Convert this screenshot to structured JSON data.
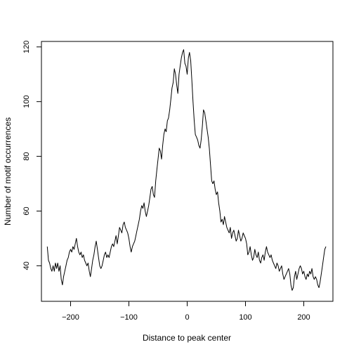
{
  "chart_data": {
    "type": "line",
    "title": "",
    "xlabel": "Distance to peak center",
    "ylabel": "Number of motif occurrences",
    "xlim": [
      -250,
      250
    ],
    "ylim": [
      27,
      122
    ],
    "xticks": [
      -200,
      -100,
      0,
      100,
      200
    ],
    "yticks": [
      40,
      60,
      80,
      100,
      120
    ],
    "grid": false,
    "line_color": "#000000",
    "series": [
      {
        "points": [
          [
            -240,
            47
          ],
          [
            -238,
            42
          ],
          [
            -236,
            41
          ],
          [
            -234,
            39
          ],
          [
            -232,
            38
          ],
          [
            -230,
            40
          ],
          [
            -228,
            38
          ],
          [
            -226,
            41
          ],
          [
            -224,
            39
          ],
          [
            -222,
            41
          ],
          [
            -220,
            38
          ],
          [
            -218,
            40
          ],
          [
            -216,
            35
          ],
          [
            -214,
            33
          ],
          [
            -212,
            36
          ],
          [
            -210,
            38
          ],
          [
            -208,
            40
          ],
          [
            -206,
            42
          ],
          [
            -204,
            43
          ],
          [
            -202,
            45
          ],
          [
            -200,
            46
          ],
          [
            -198,
            45
          ],
          [
            -196,
            47
          ],
          [
            -194,
            46
          ],
          [
            -192,
            48
          ],
          [
            -190,
            50
          ],
          [
            -188,
            47
          ],
          [
            -186,
            45
          ],
          [
            -184,
            44
          ],
          [
            -182,
            45
          ],
          [
            -180,
            43
          ],
          [
            -178,
            44
          ],
          [
            -176,
            42
          ],
          [
            -174,
            41
          ],
          [
            -172,
            40
          ],
          [
            -170,
            41
          ],
          [
            -168,
            38
          ],
          [
            -166,
            36
          ],
          [
            -164,
            39
          ],
          [
            -162,
            42
          ],
          [
            -160,
            44
          ],
          [
            -158,
            47
          ],
          [
            -156,
            49
          ],
          [
            -154,
            46
          ],
          [
            -152,
            43
          ],
          [
            -150,
            40
          ],
          [
            -148,
            39
          ],
          [
            -146,
            40
          ],
          [
            -144,
            42
          ],
          [
            -142,
            44
          ],
          [
            -140,
            45
          ],
          [
            -138,
            43
          ],
          [
            -136,
            44
          ],
          [
            -134,
            43
          ],
          [
            -132,
            45
          ],
          [
            -130,
            47
          ],
          [
            -128,
            48
          ],
          [
            -126,
            47
          ],
          [
            -124,
            49
          ],
          [
            -122,
            51
          ],
          [
            -120,
            48
          ],
          [
            -118,
            51
          ],
          [
            -116,
            54
          ],
          [
            -114,
            53
          ],
          [
            -112,
            52
          ],
          [
            -110,
            55
          ],
          [
            -108,
            56
          ],
          [
            -106,
            54
          ],
          [
            -104,
            53
          ],
          [
            -102,
            52
          ],
          [
            -100,
            50
          ],
          [
            -98,
            47
          ],
          [
            -96,
            45
          ],
          [
            -94,
            47
          ],
          [
            -92,
            48
          ],
          [
            -90,
            49
          ],
          [
            -88,
            51
          ],
          [
            -86,
            53
          ],
          [
            -84,
            55
          ],
          [
            -82,
            57
          ],
          [
            -80,
            60
          ],
          [
            -78,
            62
          ],
          [
            -76,
            61
          ],
          [
            -74,
            63
          ],
          [
            -72,
            60
          ],
          [
            -70,
            58
          ],
          [
            -68,
            60
          ],
          [
            -66,
            62
          ],
          [
            -64,
            65
          ],
          [
            -62,
            68
          ],
          [
            -60,
            69
          ],
          [
            -58,
            66
          ],
          [
            -56,
            65
          ],
          [
            -54,
            71
          ],
          [
            -52,
            75
          ],
          [
            -50,
            79
          ],
          [
            -48,
            83
          ],
          [
            -46,
            82
          ],
          [
            -44,
            79
          ],
          [
            -42,
            84
          ],
          [
            -40,
            88
          ],
          [
            -38,
            90
          ],
          [
            -36,
            89
          ],
          [
            -34,
            93
          ],
          [
            -32,
            94
          ],
          [
            -30,
            97
          ],
          [
            -28,
            101
          ],
          [
            -26,
            105
          ],
          [
            -24,
            107
          ],
          [
            -22,
            112
          ],
          [
            -20,
            110
          ],
          [
            -18,
            106
          ],
          [
            -16,
            103
          ],
          [
            -14,
            110
          ],
          [
            -12,
            113
          ],
          [
            -10,
            116
          ],
          [
            -8,
            118
          ],
          [
            -6,
            119
          ],
          [
            -4,
            114
          ],
          [
            -2,
            113
          ],
          [
            0,
            110
          ],
          [
            2,
            116
          ],
          [
            4,
            118
          ],
          [
            6,
            115
          ],
          [
            8,
            108
          ],
          [
            10,
            100
          ],
          [
            12,
            93
          ],
          [
            14,
            88
          ],
          [
            16,
            87
          ],
          [
            18,
            86
          ],
          [
            20,
            84
          ],
          [
            22,
            83
          ],
          [
            24,
            86
          ],
          [
            26,
            91
          ],
          [
            28,
            97
          ],
          [
            30,
            96
          ],
          [
            32,
            93
          ],
          [
            34,
            90
          ],
          [
            36,
            87
          ],
          [
            38,
            83
          ],
          [
            40,
            77
          ],
          [
            42,
            71
          ],
          [
            44,
            70
          ],
          [
            46,
            71
          ],
          [
            48,
            68
          ],
          [
            50,
            66
          ],
          [
            52,
            67
          ],
          [
            54,
            63
          ],
          [
            56,
            60
          ],
          [
            58,
            56
          ],
          [
            60,
            57
          ],
          [
            62,
            55
          ],
          [
            64,
            58
          ],
          [
            66,
            56
          ],
          [
            68,
            54
          ],
          [
            70,
            53
          ],
          [
            72,
            52
          ],
          [
            74,
            54
          ],
          [
            76,
            50
          ],
          [
            78,
            52
          ],
          [
            80,
            53
          ],
          [
            82,
            51
          ],
          [
            84,
            49
          ],
          [
            86,
            50
          ],
          [
            88,
            53
          ],
          [
            90,
            51
          ],
          [
            92,
            49
          ],
          [
            94,
            50
          ],
          [
            96,
            52
          ],
          [
            98,
            51
          ],
          [
            100,
            50
          ],
          [
            102,
            48
          ],
          [
            104,
            44
          ],
          [
            106,
            45
          ],
          [
            108,
            47
          ],
          [
            110,
            44
          ],
          [
            112,
            42
          ],
          [
            114,
            43
          ],
          [
            116,
            46
          ],
          [
            118,
            44
          ],
          [
            120,
            43
          ],
          [
            122,
            45
          ],
          [
            124,
            42
          ],
          [
            126,
            41
          ],
          [
            128,
            43
          ],
          [
            130,
            44
          ],
          [
            132,
            42
          ],
          [
            134,
            45
          ],
          [
            136,
            47
          ],
          [
            138,
            45
          ],
          [
            140,
            44
          ],
          [
            142,
            43
          ],
          [
            144,
            44
          ],
          [
            146,
            42
          ],
          [
            148,
            41
          ],
          [
            150,
            40
          ],
          [
            152,
            39
          ],
          [
            154,
            41
          ],
          [
            156,
            40
          ],
          [
            158,
            38
          ],
          [
            160,
            39
          ],
          [
            162,
            40
          ],
          [
            164,
            37
          ],
          [
            166,
            35
          ],
          [
            168,
            36
          ],
          [
            170,
            37
          ],
          [
            172,
            38
          ],
          [
            174,
            39
          ],
          [
            176,
            37
          ],
          [
            178,
            33
          ],
          [
            180,
            31
          ],
          [
            182,
            32
          ],
          [
            184,
            36
          ],
          [
            186,
            38
          ],
          [
            188,
            35
          ],
          [
            190,
            37
          ],
          [
            192,
            39
          ],
          [
            194,
            40
          ],
          [
            196,
            39
          ],
          [
            198,
            37
          ],
          [
            200,
            38
          ],
          [
            202,
            36
          ],
          [
            204,
            35
          ],
          [
            206,
            37
          ],
          [
            208,
            36
          ],
          [
            210,
            38
          ],
          [
            212,
            37
          ],
          [
            214,
            39
          ],
          [
            216,
            36
          ],
          [
            218,
            35
          ],
          [
            220,
            36
          ],
          [
            222,
            35
          ],
          [
            224,
            33
          ],
          [
            226,
            32
          ],
          [
            228,
            34
          ],
          [
            230,
            37
          ],
          [
            232,
            40
          ],
          [
            234,
            43
          ],
          [
            236,
            46
          ],
          [
            238,
            47
          ]
        ]
      }
    ]
  }
}
